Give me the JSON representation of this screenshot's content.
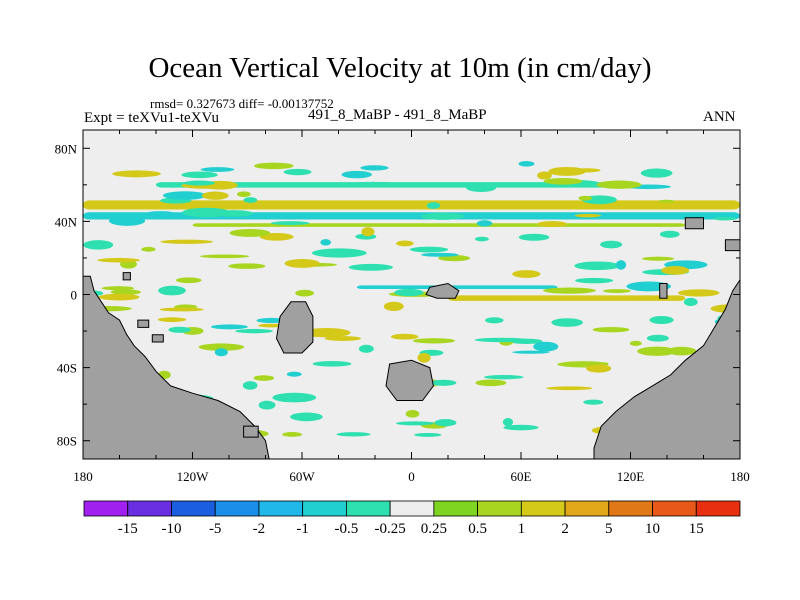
{
  "header": {
    "title": "Ocean Vertical Velocity at 10m (in cm/day)",
    "stats": "rmsd= 0.327673 diff= -0.00137752",
    "left_label": "Expt = teXVu1-teXVu",
    "center_label": "491_8_MaBP - 491_8_MaBP",
    "right_label": "ANN"
  },
  "chart_data": {
    "type": "heatmap",
    "title": "Ocean Vertical Velocity at 10m (in cm/day)",
    "x_axis": {
      "range": [
        -180,
        180
      ],
      "ticks": [
        {
          "value": -180,
          "label": "180"
        },
        {
          "value": -120,
          "label": "120W"
        },
        {
          "value": -60,
          "label": "60W"
        },
        {
          "value": 0,
          "label": "0"
        },
        {
          "value": 60,
          "label": "60E"
        },
        {
          "value": 120,
          "label": "120E"
        },
        {
          "value": 180,
          "label": "180"
        }
      ]
    },
    "y_axis": {
      "range": [
        -90,
        90
      ],
      "ticks": [
        {
          "value": 80,
          "label": "80N"
        },
        {
          "value": 40,
          "label": "40N"
        },
        {
          "value": 0,
          "label": "0"
        },
        {
          "value": -40,
          "label": "40S"
        },
        {
          "value": -80,
          "label": "80S"
        }
      ]
    },
    "colorbar": {
      "labels": [
        "-15",
        "-10",
        "-5",
        "-2",
        "-1",
        "-0.5",
        "-0.25",
        "0.25",
        "0.5",
        "1",
        "2",
        "5",
        "10",
        "15"
      ],
      "colors": [
        "#a020f0",
        "#6a2fe0",
        "#1c5ee0",
        "#1a8ee8",
        "#20b8e8",
        "#22cfd0",
        "#2ee0b0",
        "#eeeeee",
        "#7ed420",
        "#a8d620",
        "#d4c818",
        "#e0a818",
        "#e07818",
        "#e85818",
        "#e83010"
      ]
    },
    "land_color": "#a0a0a0",
    "ocean_color": "#eeeeee",
    "bands": [
      {
        "lat_center": 49,
        "lat_width": 5,
        "lon_start": -180,
        "lon_end": 180,
        "value": 1
      },
      {
        "lat_center": 43,
        "lat_width": 4,
        "lon_start": -180,
        "lon_end": 180,
        "value": -1
      },
      {
        "lat_center": 60,
        "lat_width": 3,
        "lon_start": -140,
        "lon_end": 120,
        "value": -0.5
      },
      {
        "lat_center": 38,
        "lat_width": 2,
        "lon_start": -120,
        "lon_end": 150,
        "value": 0.5
      },
      {
        "lat_center": -2,
        "lat_width": 3,
        "lon_start": 20,
        "lon_end": 150,
        "value": 1
      },
      {
        "lat_center": 4,
        "lat_width": 2,
        "lon_start": -30,
        "lon_end": 80,
        "value": -1
      }
    ]
  }
}
